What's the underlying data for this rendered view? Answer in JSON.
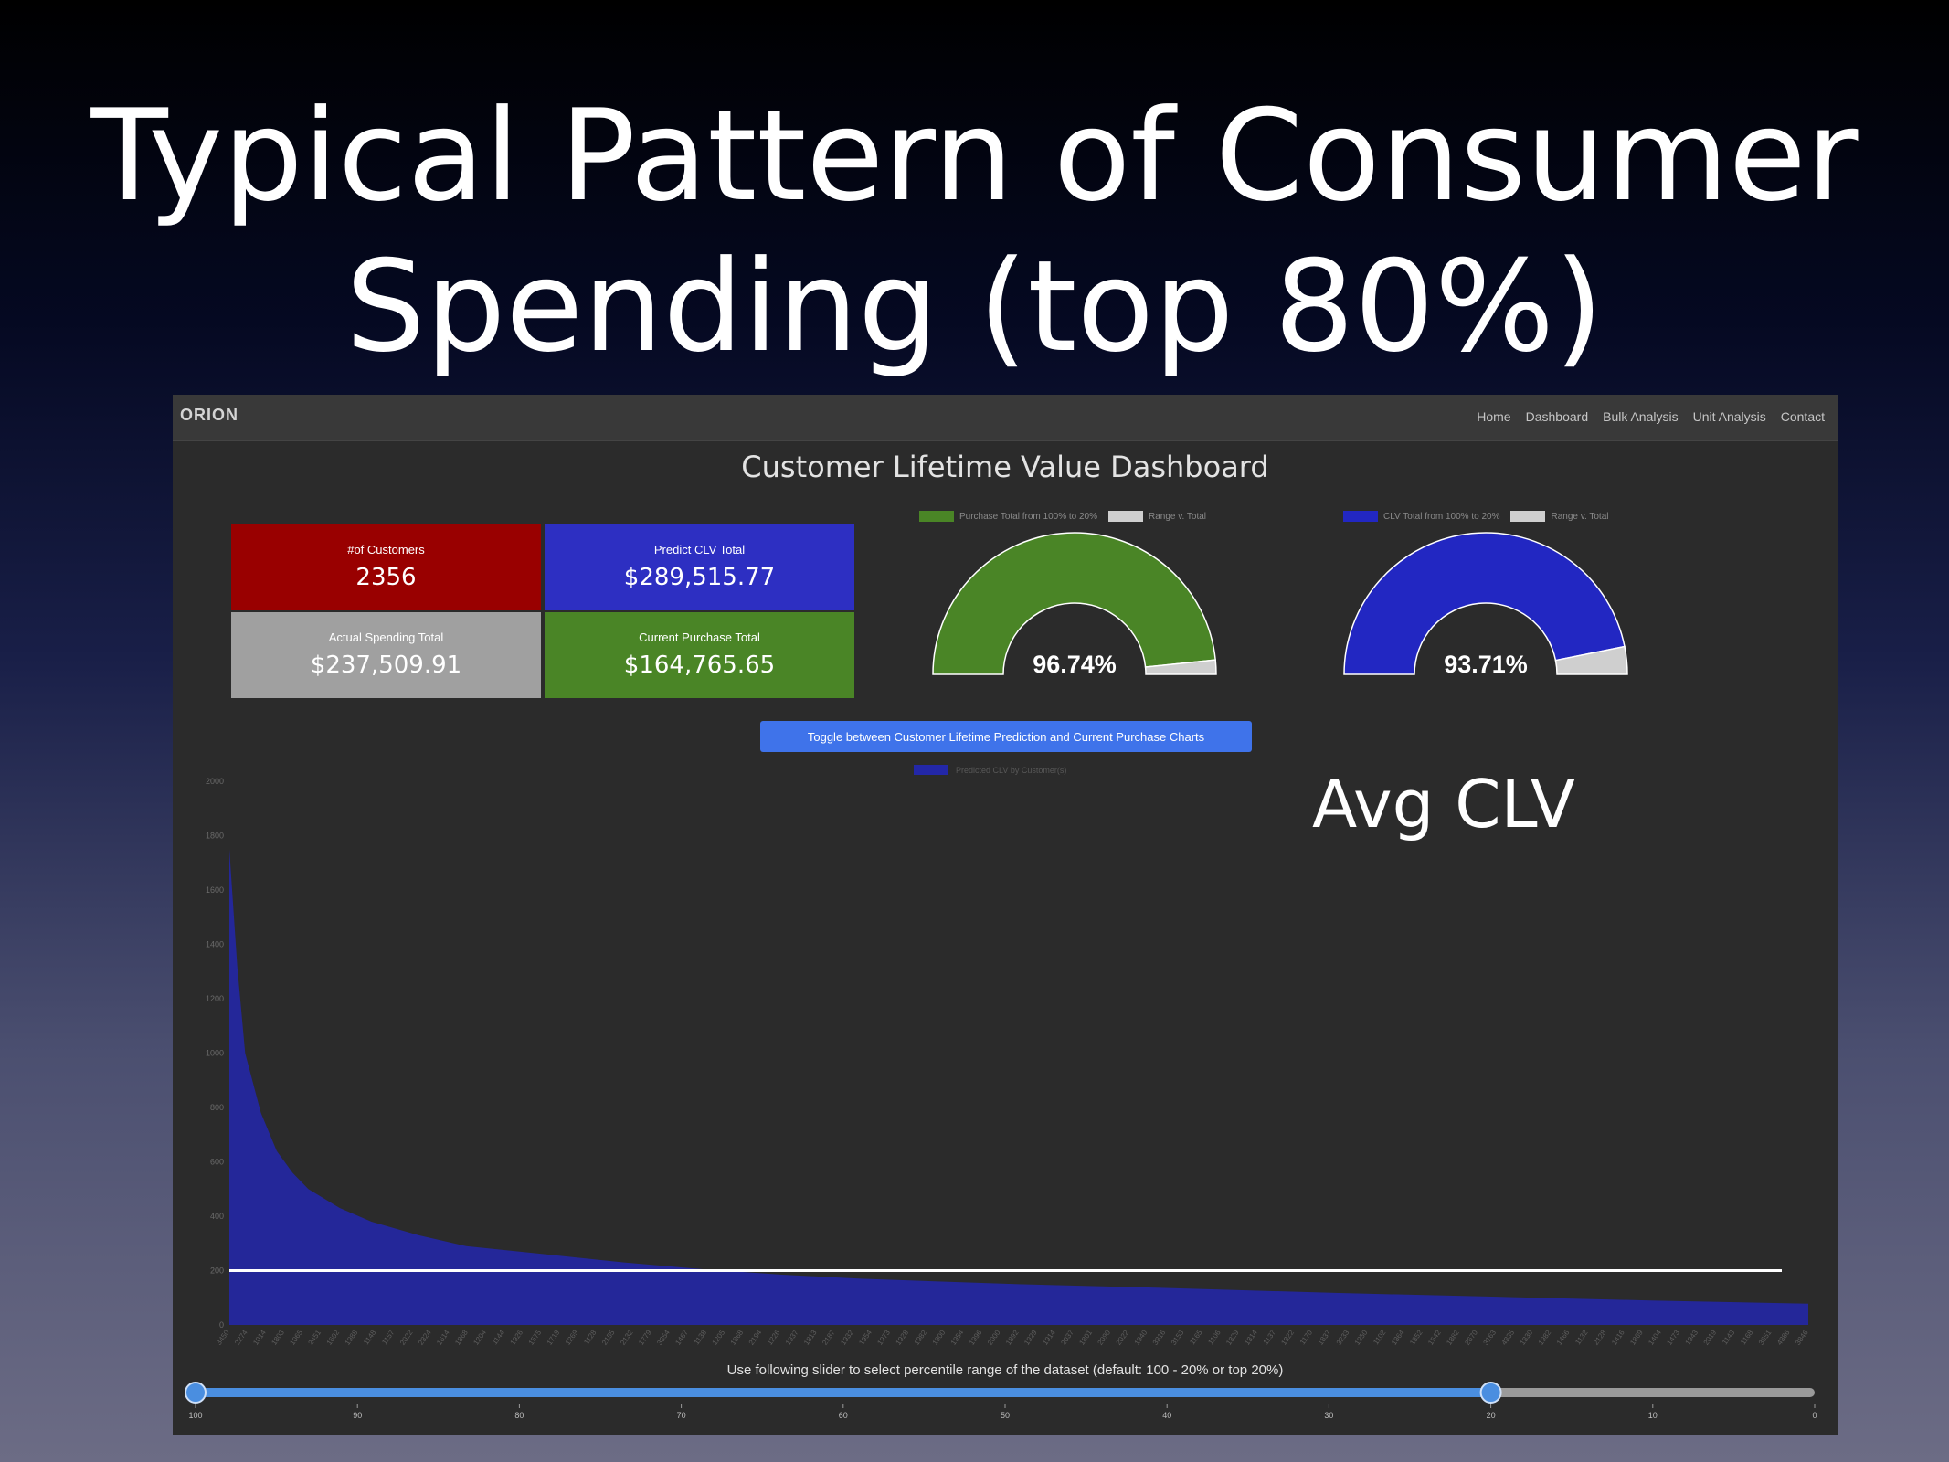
{
  "slide": {
    "title_line1": "Typical Pattern of Consumer",
    "title_line2": "Spending (top 80%)",
    "annotation": "Avg CLV"
  },
  "app": {
    "brand": "ORION",
    "nav": [
      "Home",
      "Dashboard",
      "Bulk Analysis",
      "Unit Analysis",
      "Contact"
    ],
    "title": "Customer Lifetime Value Dashboard"
  },
  "kpis": [
    {
      "label": "#of Customers",
      "value": "2356",
      "color": "#990000"
    },
    {
      "label": "Predict CLV Total",
      "value": "$289,515.77",
      "color": "#2d2fc2"
    },
    {
      "label": "Actual Spending Total",
      "value": "$237,509.91",
      "color": "#a0a0a0"
    },
    {
      "label": "Current Purchase Total",
      "value": "$164,765.65",
      "color": "#4a8526"
    }
  ],
  "gauges": [
    {
      "legend_a": "Purchase Total from 100% to 20%",
      "legend_b": "Range v. Total",
      "value_text": "96.74%",
      "fraction": 0.9674,
      "color": "#4a8526",
      "rest_color": "#cfcfcf"
    },
    {
      "legend_a": "CLV Total from 100% to 20%",
      "legend_b": "Range v. Total",
      "value_text": "93.71%",
      "fraction": 0.9371,
      "color": "#2227c2",
      "rest_color": "#cfcfcf"
    }
  ],
  "toggle_button": "Toggle between Customer Lifetime Prediction and Current Purchase Charts",
  "slider": {
    "label": "Use following slider to select percentile range of the dataset (default: 100 - 20% or top 20%)",
    "ticks": [
      "100",
      "90",
      "80",
      "70",
      "60",
      "50",
      "40",
      "30",
      "20",
      "10",
      "0"
    ],
    "min": 0,
    "max": 100,
    "low": 20,
    "high": 100
  },
  "chart_data": {
    "type": "area",
    "series": [
      {
        "name": "Predicted CLV by Customer(s)",
        "color": "#2327a8"
      }
    ],
    "y_ticks": [
      0,
      200,
      400,
      600,
      800,
      1000,
      1200,
      1400,
      1600,
      1800,
      2000
    ],
    "ylim": [
      0,
      2000
    ],
    "curve": [
      [
        0,
        1750
      ],
      [
        0.005,
        1320
      ],
      [
        0.01,
        1000
      ],
      [
        0.02,
        780
      ],
      [
        0.03,
        640
      ],
      [
        0.04,
        560
      ],
      [
        0.05,
        500
      ],
      [
        0.07,
        430
      ],
      [
        0.09,
        380
      ],
      [
        0.12,
        330
      ],
      [
        0.15,
        290
      ],
      [
        0.2,
        260
      ],
      [
        0.25,
        230
      ],
      [
        0.3,
        205
      ],
      [
        0.35,
        185
      ],
      [
        0.4,
        170
      ],
      [
        0.5,
        150
      ],
      [
        0.6,
        135
      ],
      [
        0.7,
        118
      ],
      [
        0.8,
        104
      ],
      [
        0.9,
        90
      ],
      [
        1.0,
        78
      ]
    ],
    "avg_line": 200,
    "x_tick_labels": [
      "3450",
      "2274",
      "1014",
      "1803",
      "1065",
      "2451",
      "1602",
      "1988",
      "1148",
      "1157",
      "2022",
      "2324",
      "1614",
      "1868",
      "1204",
      "1144",
      "1926",
      "1575",
      "1719",
      "1269",
      "1128",
      "2155",
      "2132",
      "1779",
      "3354",
      "1467",
      "1138",
      "1205",
      "1868",
      "2194",
      "1226",
      "1937",
      "1813",
      "2187",
      "1932",
      "1954",
      "1973",
      "1928",
      "1982",
      "1900",
      "1954",
      "1996",
      "2000",
      "1892",
      "1929",
      "1914",
      "2037",
      "1801",
      "2090",
      "2022",
      "1940",
      "3316",
      "3153",
      "1165",
      "1106",
      "1329",
      "1314",
      "1137",
      "1322",
      "1170",
      "1837",
      "3233",
      "1950",
      "1102",
      "1364",
      "1352",
      "1542",
      "1882",
      "2670",
      "3163",
      "4335",
      "1330",
      "1982",
      "1466",
      "1132",
      "2128",
      "1416",
      "1869",
      "1404",
      "1473",
      "1943",
      "2019",
      "1143",
      "1168",
      "3651",
      "4386",
      "3846"
    ]
  }
}
